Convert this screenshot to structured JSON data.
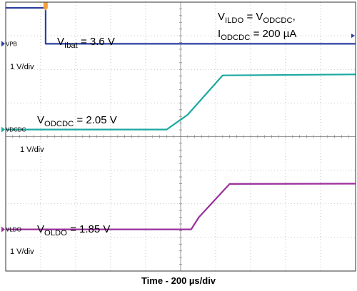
{
  "chart_data": {
    "type": "line",
    "title": "",
    "xlabel": "Time - 200 µs/div",
    "grid": true,
    "legend": "none",
    "divisions": {
      "x": 10,
      "y": 8
    },
    "series": [
      {
        "name": "VPB",
        "marker_label": "VPB",
        "scale": "1 V/div",
        "color": "#2b3fa0",
        "annotation": "V_Ibat = 3.6 V",
        "annotation_parts": {
          "base": "V",
          "sub": "Ibat",
          "rest": " = 3.6 V"
        },
        "points_div": [
          [
            0,
            7.83
          ],
          [
            1.14,
            7.83
          ],
          [
            1.14,
            6.76
          ],
          [
            10,
            6.76
          ]
        ]
      },
      {
        "name": "VDCDC",
        "marker_label": "VDCDC",
        "scale": "1 V/div",
        "color": "#1aa8a0",
        "annotation": "V_ODCDC = 2.05 V",
        "annotation_parts": {
          "base": "V",
          "sub": "ODCDC",
          "rest": " = 2.05 V"
        },
        "points_div": [
          [
            0,
            4.21
          ],
          [
            4.6,
            4.21
          ],
          [
            5.2,
            4.65
          ],
          [
            6.2,
            5.82
          ],
          [
            10,
            5.85
          ]
        ]
      },
      {
        "name": "VLDO",
        "marker_label": "VLDO",
        "scale": "1 V/div",
        "color": "#9a2f9c",
        "annotation": "V_OLDO = 1.85 V",
        "annotation_parts": {
          "base": "V",
          "sub": "OLDO",
          "rest": " = 1.85 V"
        },
        "points_div": [
          [
            0,
            1.24
          ],
          [
            5.3,
            1.24
          ],
          [
            5.52,
            1.6
          ],
          [
            6.4,
            2.59
          ],
          [
            10,
            2.6
          ]
        ]
      }
    ],
    "note": {
      "line1": {
        "base": "V",
        "sub1": "ILDO",
        "mid": " = V",
        "sub2": "ODCDC",
        "rest": ","
      },
      "line2": {
        "base": "I",
        "sub": "ODCDC",
        "rest": " = 200 µA"
      }
    }
  }
}
